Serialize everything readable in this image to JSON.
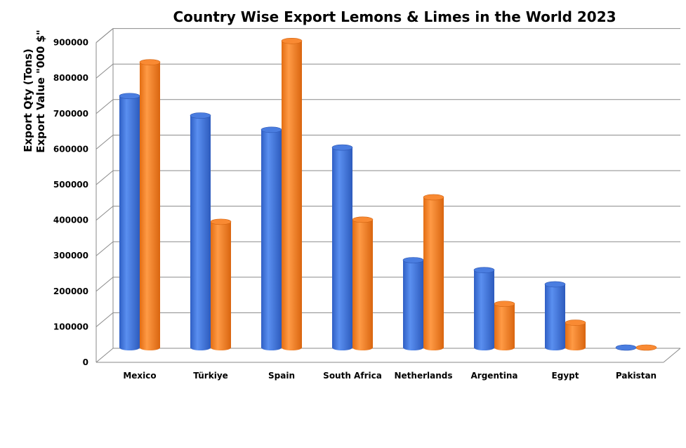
{
  "chart_data": {
    "type": "bar",
    "title": "Country Wise Export Lemons & Limes in the World 2023",
    "ylabel_lines": [
      "Export Qty (Tons)",
      "Export Value \"000 $\""
    ],
    "xlabel": "",
    "categories": [
      "Mexico",
      "Türkiye",
      "Spain",
      "South Africa",
      "Netherlands",
      "Argentina",
      "Egypt",
      "Pakistan"
    ],
    "series": [
      {
        "values": [
          710000,
          655000,
          615000,
          565000,
          248000,
          220000,
          180000,
          4000
        ]
      },
      {
        "values": [
          805000,
          356000,
          865000,
          362000,
          425000,
          125000,
          72000,
          4000
        ]
      }
    ],
    "ylim": [
      0,
      900000
    ],
    "yticks": [
      "0",
      "100000",
      "200000",
      "300000",
      "400000",
      "500000",
      "600000",
      "700000",
      "800000",
      "900000"
    ],
    "grid": true,
    "style": "3d-cylinder",
    "colors": {
      "series1": "#4a7de0",
      "series2": "#f98a33"
    }
  }
}
